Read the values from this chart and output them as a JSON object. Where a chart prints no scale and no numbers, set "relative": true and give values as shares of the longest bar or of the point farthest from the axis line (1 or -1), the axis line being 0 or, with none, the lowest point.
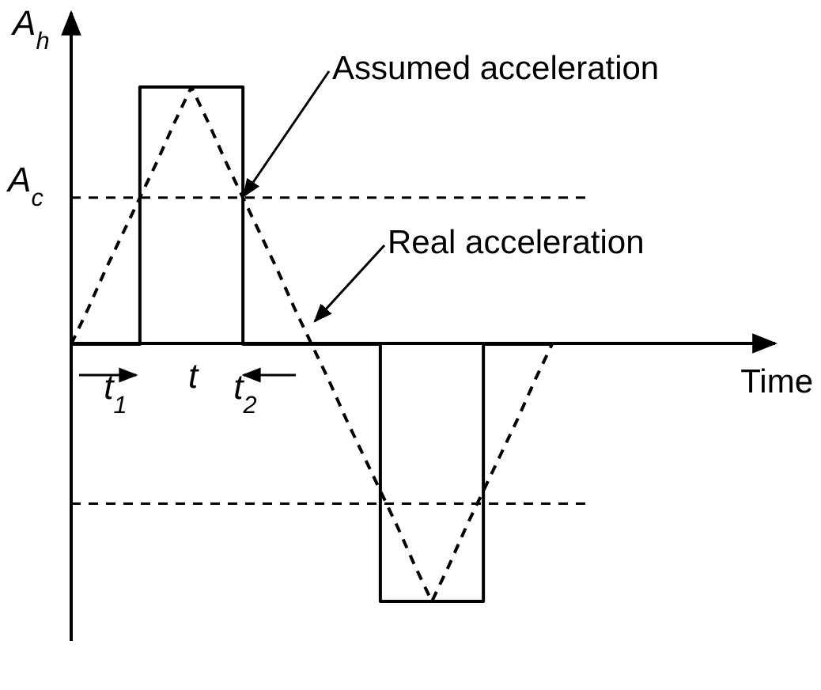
{
  "chart_data": {
    "type": "line",
    "relative": true,
    "ylabel": "A$_{h}$",
    "categories": [
      null,
      null,
      null,
      null,
      null,
      null,
      null,
      null,
      null,
      null,
      null,
      null,
      null,
      null,
      null,
      null,
      null,
      null,
      null,
      null,
      null,
      null,
      null,
      null,
      null,
      null,
      null,
      null,
      null
    ],
    "series": [
      {
        "type": "step",
        "color": "#000000",
        "line_style": "solid",
        "values": [
          0,
          0,
          0,
          0,
          1,
          1,
          1,
          1,
          1,
          1,
          0,
          0,
          0,
          0,
          0,
          0,
          0,
          0,
          -1,
          -1,
          -1,
          -1,
          -1,
          -1,
          0,
          0,
          0,
          0,
          0
        ]
      },
      {
        "type": "line",
        "color": "#000000",
        "line_style": "dashed",
        "values": [
          0,
          0.14,
          0.29,
          0.43,
          0.57,
          0.71,
          0.86,
          1,
          0.86,
          0.71,
          0.57,
          0.43,
          0.29,
          0.14,
          0,
          -0.14,
          -0.29,
          -0.43,
          -0.57,
          -0.71,
          -0.86,
          -1,
          -0.86,
          -0.71,
          -0.57,
          -0.43,
          -0.29,
          -0.14,
          0
        ]
      }
    ],
    "ref_lines": [
      {
        "axis": "y",
        "value": 0.57,
        "label": "A$_{c}$",
        "line_style": "dashed",
        "color": "#000000"
      },
      {
        "axis": "y",
        "value": -0.62,
        "line_style": "dashed",
        "color": "#000000"
      }
    ],
    "annotations": [
      "Assumed acceleration",
      "Real acceleration",
      "t$_{1}$",
      "t",
      "t$_{2}$",
      "Time"
    ]
  }
}
